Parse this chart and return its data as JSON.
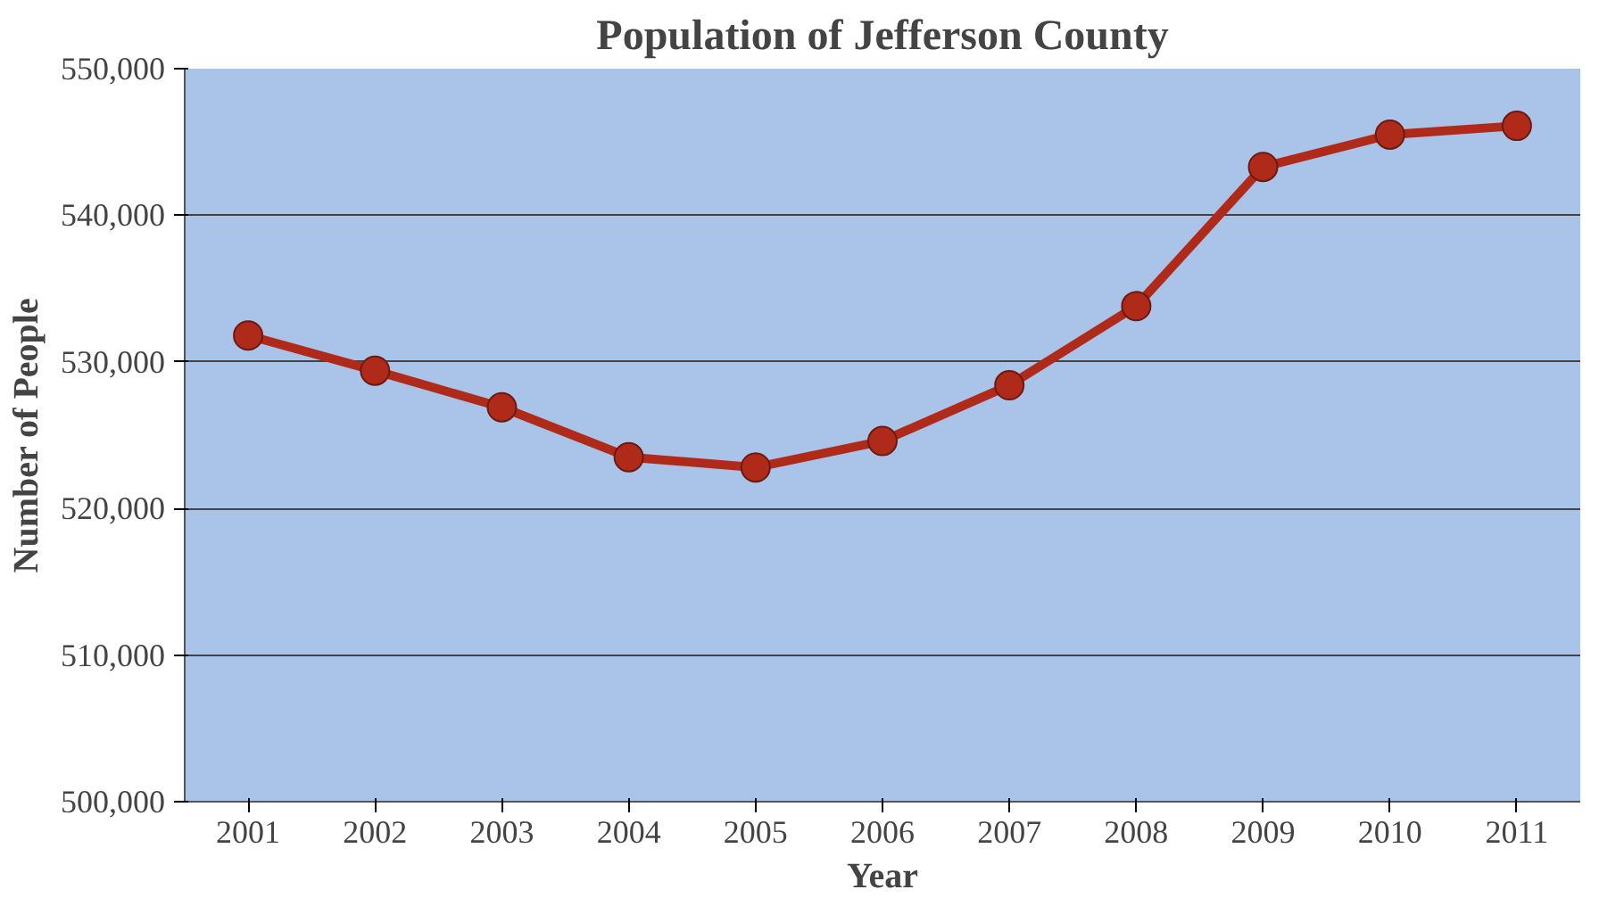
{
  "chart_data": {
    "type": "line",
    "title": "Population of Jefferson County",
    "xlabel": "Year",
    "ylabel": "Number of People",
    "categories": [
      "2001",
      "2002",
      "2003",
      "2004",
      "2005",
      "2006",
      "2007",
      "2008",
      "2009",
      "2010",
      "2011"
    ],
    "series": [
      {
        "color": "#b02a1a",
        "values": [
          531800,
          529400,
          526900,
          523500,
          522800,
          524600,
          528400,
          533800,
          543300,
          545500,
          546100
        ]
      }
    ],
    "ylim": [
      500000,
      550000
    ],
    "yticks": [
      {
        "value": 500000,
        "label": "500,000"
      },
      {
        "value": 510000,
        "label": "510,000"
      },
      {
        "value": 520000,
        "label": "520,000"
      },
      {
        "value": 530000,
        "label": "530,000"
      },
      {
        "value": 540000,
        "label": "540,000"
      },
      {
        "value": 550000,
        "label": "550,000"
      }
    ],
    "grid": "y",
    "marker": "circle",
    "line_style": "solid"
  }
}
